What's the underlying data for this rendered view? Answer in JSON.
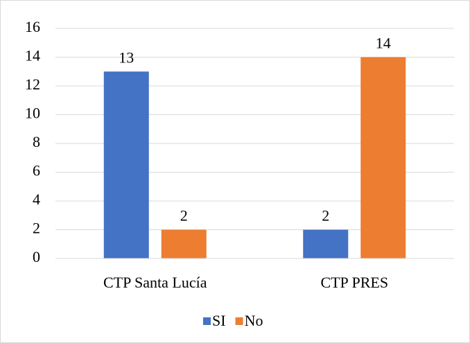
{
  "chart_data": {
    "type": "bar",
    "categories": [
      "CTP Santa Lucía",
      "CTP PRES"
    ],
    "series": [
      {
        "name": "SI",
        "color": "#4472c4",
        "values": [
          13,
          2
        ]
      },
      {
        "name": "No",
        "color": "#ed7d31",
        "values": [
          2,
          14
        ]
      }
    ],
    "ylim": [
      0,
      16
    ],
    "yticks": [
      0,
      2,
      4,
      6,
      8,
      10,
      12,
      14,
      16
    ],
    "grid": true,
    "legend": "bottom"
  }
}
